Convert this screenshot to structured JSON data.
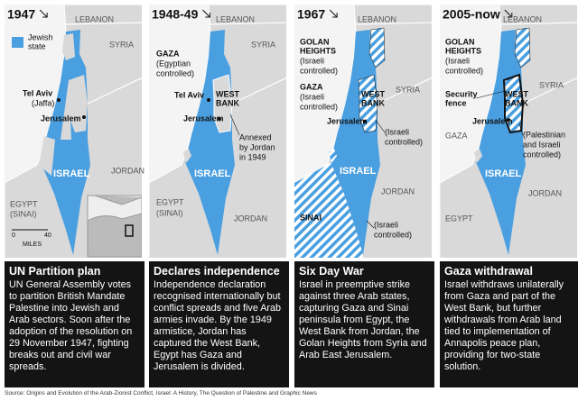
{
  "panels": [
    {
      "year": "1947",
      "labels": [
        "LEBANON",
        "SYRIA",
        "Jewish",
        "state",
        "Tel Aviv",
        "(Jaffa)",
        "Jerusalem",
        "JORDAN",
        "ISRAEL",
        "EGYPT",
        "(SINAI)",
        "0",
        "40",
        "MILES"
      ],
      "heading": "UN Partition plan",
      "body": "UN General Assembly votes to partition British Mandate Palestine into Jewish and Arab sectors. Soon after the adoption of the resolution on 29 November 1947, fighting breaks out and civil war spreads."
    },
    {
      "year": "1948-49",
      "labels": [
        "LEBANON",
        "SYRIA",
        "GAZA",
        "(Egyptian",
        "controlled)",
        "Tel Aviv",
        "WEST",
        "BANK",
        "Jerusalem",
        "Annexed",
        "by Jordan",
        "in 1949",
        "ISRAEL",
        "EGYPT",
        "(SINAI)",
        "JORDAN"
      ],
      "heading": "Declares independence",
      "body": "Independence declaration recognised internationally but conflict spreads and five Arab armies invade. By the 1949 armistice, Jordan has captured the West Bank, Egypt has Gaza and Jerusalem is divided."
    },
    {
      "year": "1967",
      "labels": [
        "LEBANON",
        "GOLAN",
        "HEIGHTS",
        "(Israeli",
        "controlled)",
        "SYRIA",
        "GAZA",
        "(Israeli",
        "controlled)",
        "WEST",
        "BANK",
        "Jerusalem",
        "(Israeli",
        "controlled)",
        "ISRAEL",
        "JORDAN",
        "SINAI",
        "(Israeli",
        "controlled)"
      ],
      "heading": "Six Day War",
      "body": "Israel in preemptive strike against three Arab states, capturing Gaza and Sinai peninsula from Egypt, the West Bank from Jordan, the Golan Heights from Syria and Arab East Jerusalem."
    },
    {
      "year": "2005-now",
      "labels": [
        "LEBANON",
        "GOLAN",
        "HEIGHTS",
        "(Israeli",
        "controlled)",
        "SYRIA",
        "Security",
        "fence",
        "WEST",
        "BANK",
        "Jerusalem",
        "GAZA",
        "(Palestinian",
        "and Israeli",
        "controlled)",
        "ISRAEL",
        "JORDAN",
        "EGYPT"
      ],
      "heading": "Gaza withdrawal",
      "body": "Israel withdraws unilaterally from Gaza and part of the West Bank, but further withdrawals from Arab land tied to implementation of Annapolis peace plan, providing for two-state solution."
    }
  ],
  "source": "Source: Origins and Evolution of the Arab-Zionist Conflict, Israel: A History, The Question of Palestine and Graphic News"
}
